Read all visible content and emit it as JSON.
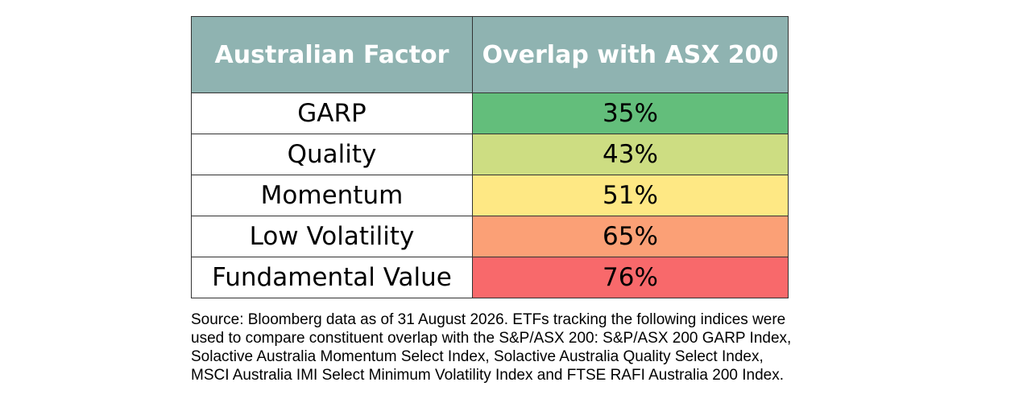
{
  "chart_data": {
    "type": "table",
    "columns": [
      "Australian Factor",
      "Overlap with ASX 200"
    ],
    "rows": [
      {
        "factor": "GARP",
        "overlap": "35%",
        "value": 35,
        "color": "#63be7b"
      },
      {
        "factor": "Quality",
        "overlap": "43%",
        "value": 43,
        "color": "#cddd82"
      },
      {
        "factor": "Momentum",
        "overlap": "51%",
        "value": 51,
        "color": "#fee884"
      },
      {
        "factor": "Low Volatility",
        "overlap": "65%",
        "value": 65,
        "color": "#fba076"
      },
      {
        "factor": "Fundamental Value",
        "overlap": "76%",
        "value": 76,
        "color": "#f8696b"
      }
    ],
    "header_color": "#8fb3b1"
  },
  "source_lines": [
    "Source: Bloomberg data as of 31 August 2026. ETFs tracking the following indices were",
    "used to compare constituent overlap with the S&P/ASX 200: S&P/ASX 200 GARP Index,",
    "Solactive Australia Momentum Select Index, Solactive Australia Quality Select Index,",
    "MSCI Australia IMI Select Minimum Volatility Index and FTSE RAFI Australia 200 Index."
  ]
}
